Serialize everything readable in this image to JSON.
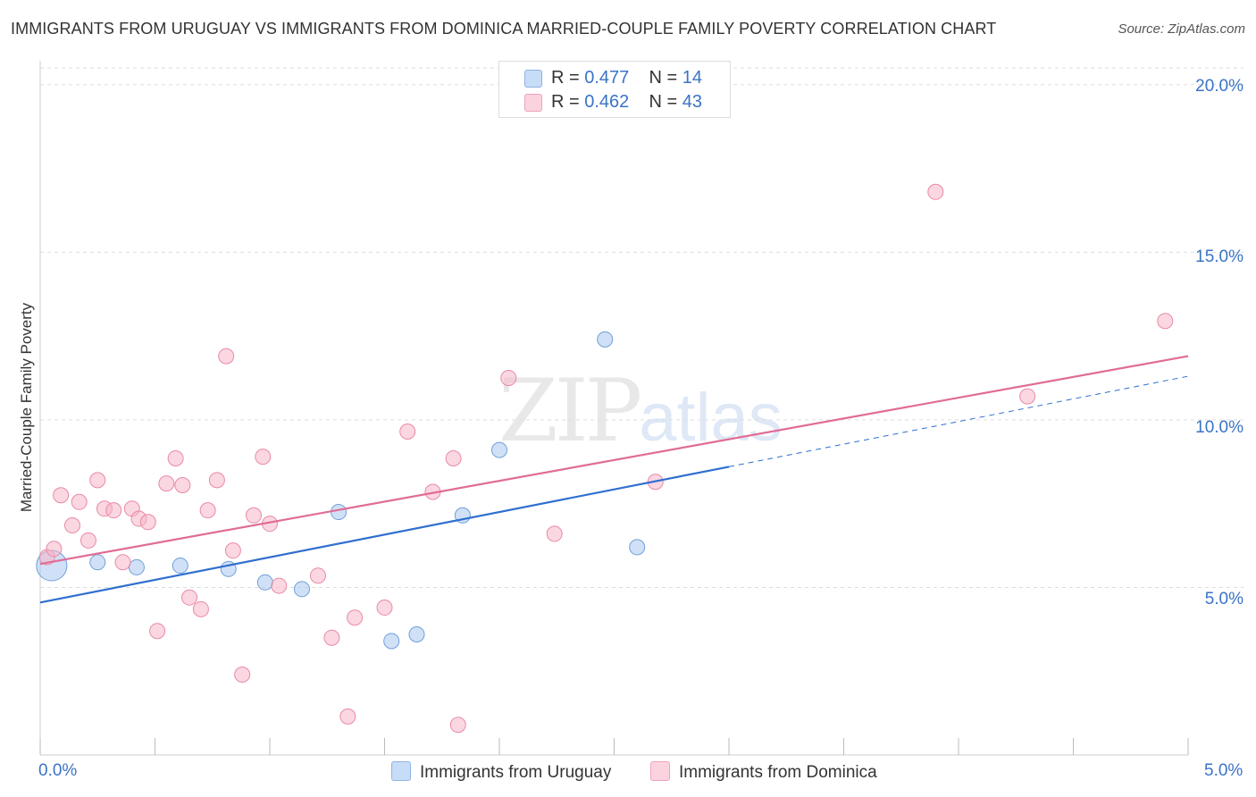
{
  "title": "IMMIGRANTS FROM URUGUAY VS IMMIGRANTS FROM DOMINICA MARRIED-COUPLE FAMILY POVERTY CORRELATION CHART",
  "source": "Source: ZipAtlas.com",
  "watermark": {
    "zip": "ZIP",
    "atlas": "atlas"
  },
  "legend_top": [
    {
      "r_label": "R =",
      "r_value": "0.477",
      "n_label": "N =",
      "n_value": "14",
      "color": "#a9c8f0"
    },
    {
      "r_label": "R =",
      "r_value": "0.462",
      "n_label": "N =",
      "n_value": "43",
      "color": "#f7b6c8"
    }
  ],
  "chart_data": {
    "type": "scatter",
    "title": "IMMIGRANTS FROM URUGUAY VS IMMIGRANTS FROM DOMINICA MARRIED-COUPLE FAMILY POVERTY CORRELATION CHART",
    "xlabel": "",
    "ylabel": "Married-Couple Family Poverty",
    "xlim": [
      0,
      5
    ],
    "ylim": [
      0,
      20.5
    ],
    "x_tick_labels": [
      "0.0%",
      "5.0%"
    ],
    "y_ticks": [
      5,
      10,
      15,
      20
    ],
    "y_tick_labels": [
      "5.0%",
      "10.0%",
      "15.0%",
      "20.0%"
    ],
    "grid": true,
    "legend_position": "bottom",
    "series": [
      {
        "name": "Immigrants from Uruguay",
        "color": "#a9c8f0",
        "edge": "#6f9fd8",
        "line_color": "#2f6fcf",
        "trend": {
          "x0": 0.0,
          "y0": 4.55,
          "x1": 3.0,
          "y1": 8.6,
          "dash_to_x": 5.0,
          "dash_y": 11.3
        },
        "points": [
          {
            "x": 0.05,
            "y": 5.65,
            "big": true
          },
          {
            "x": 0.25,
            "y": 5.75
          },
          {
            "x": 0.42,
            "y": 5.6
          },
          {
            "x": 0.61,
            "y": 5.65
          },
          {
            "x": 0.82,
            "y": 5.55
          },
          {
            "x": 0.98,
            "y": 5.15
          },
          {
            "x": 1.14,
            "y": 4.95
          },
          {
            "x": 1.3,
            "y": 7.25
          },
          {
            "x": 1.53,
            "y": 3.4
          },
          {
            "x": 1.64,
            "y": 3.6
          },
          {
            "x": 1.84,
            "y": 7.15
          },
          {
            "x": 2.0,
            "y": 9.1
          },
          {
            "x": 2.46,
            "y": 12.4
          },
          {
            "x": 2.6,
            "y": 6.2
          }
        ]
      },
      {
        "name": "Immigrants from Dominica",
        "color": "#f7b6c8",
        "edge": "#e88aa6",
        "line_color": "#e06c95",
        "trend": {
          "x0": 0.0,
          "y0": 5.7,
          "x1": 5.0,
          "y1": 11.9
        },
        "points": [
          {
            "x": 0.03,
            "y": 5.9
          },
          {
            "x": 0.06,
            "y": 6.15
          },
          {
            "x": 0.09,
            "y": 7.75
          },
          {
            "x": 0.14,
            "y": 6.85
          },
          {
            "x": 0.17,
            "y": 7.55
          },
          {
            "x": 0.21,
            "y": 6.4
          },
          {
            "x": 0.25,
            "y": 8.2
          },
          {
            "x": 0.28,
            "y": 7.35
          },
          {
            "x": 0.32,
            "y": 7.3
          },
          {
            "x": 0.36,
            "y": 5.75
          },
          {
            "x": 0.4,
            "y": 7.35
          },
          {
            "x": 0.43,
            "y": 7.05
          },
          {
            "x": 0.47,
            "y": 6.95
          },
          {
            "x": 0.51,
            "y": 3.7
          },
          {
            "x": 0.55,
            "y": 8.1
          },
          {
            "x": 0.59,
            "y": 8.85
          },
          {
            "x": 0.62,
            "y": 8.05
          },
          {
            "x": 0.65,
            "y": 4.7
          },
          {
            "x": 0.7,
            "y": 4.35
          },
          {
            "x": 0.73,
            "y": 7.3
          },
          {
            "x": 0.77,
            "y": 8.2
          },
          {
            "x": 0.81,
            "y": 11.9
          },
          {
            "x": 0.84,
            "y": 6.1
          },
          {
            "x": 0.88,
            "y": 2.4
          },
          {
            "x": 0.93,
            "y": 7.15
          },
          {
            "x": 0.97,
            "y": 8.9
          },
          {
            "x": 1.0,
            "y": 6.9
          },
          {
            "x": 1.04,
            "y": 5.05
          },
          {
            "x": 1.21,
            "y": 5.35
          },
          {
            "x": 1.27,
            "y": 3.5
          },
          {
            "x": 1.34,
            "y": 1.15
          },
          {
            "x": 1.37,
            "y": 4.1
          },
          {
            "x": 1.5,
            "y": 4.4
          },
          {
            "x": 1.6,
            "y": 9.65
          },
          {
            "x": 1.71,
            "y": 7.85
          },
          {
            "x": 1.8,
            "y": 8.85
          },
          {
            "x": 1.82,
            "y": 0.9
          },
          {
            "x": 2.04,
            "y": 11.25
          },
          {
            "x": 2.24,
            "y": 6.6
          },
          {
            "x": 2.68,
            "y": 8.15
          },
          {
            "x": 3.9,
            "y": 16.8
          },
          {
            "x": 4.3,
            "y": 10.7
          },
          {
            "x": 4.9,
            "y": 12.95
          }
        ]
      }
    ]
  }
}
